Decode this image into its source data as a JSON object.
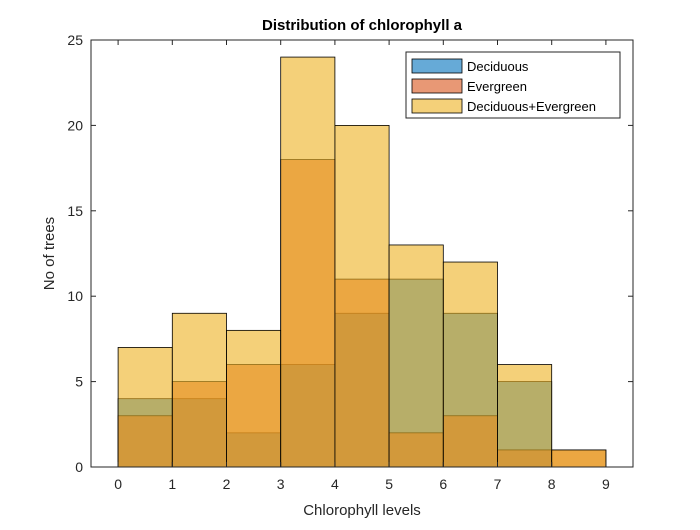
{
  "chart_data": {
    "type": "bar",
    "title": "Distribution of chlorophyll a",
    "xlabel": "Chlorophyll levels",
    "ylabel": "No of trees",
    "xlim": [
      -0.5,
      9.5
    ],
    "ylim": [
      0,
      25
    ],
    "xticks": [
      0,
      1,
      2,
      3,
      4,
      5,
      6,
      7,
      8,
      9
    ],
    "yticks": [
      0,
      5,
      10,
      15,
      20,
      25
    ],
    "bin_edges": [
      0,
      1,
      2,
      3,
      4,
      5,
      6,
      7,
      8,
      9
    ],
    "legend_position": "top-right",
    "series": [
      {
        "name": "Deciduous",
        "color": "#0072BD",
        "opacity": 0.6,
        "values": [
          4,
          4,
          2,
          6,
          9,
          11,
          9,
          5,
          0
        ]
      },
      {
        "name": "Evergreen",
        "color": "#D95319",
        "opacity": 0.6,
        "values": [
          3,
          5,
          6,
          18,
          11,
          2,
          3,
          1,
          1
        ]
      },
      {
        "name": "Deciduous+Evergreen",
        "color": "#EDB120",
        "opacity": 0.6,
        "values": [
          7,
          9,
          8,
          24,
          20,
          13,
          12,
          6,
          1
        ]
      }
    ]
  }
}
